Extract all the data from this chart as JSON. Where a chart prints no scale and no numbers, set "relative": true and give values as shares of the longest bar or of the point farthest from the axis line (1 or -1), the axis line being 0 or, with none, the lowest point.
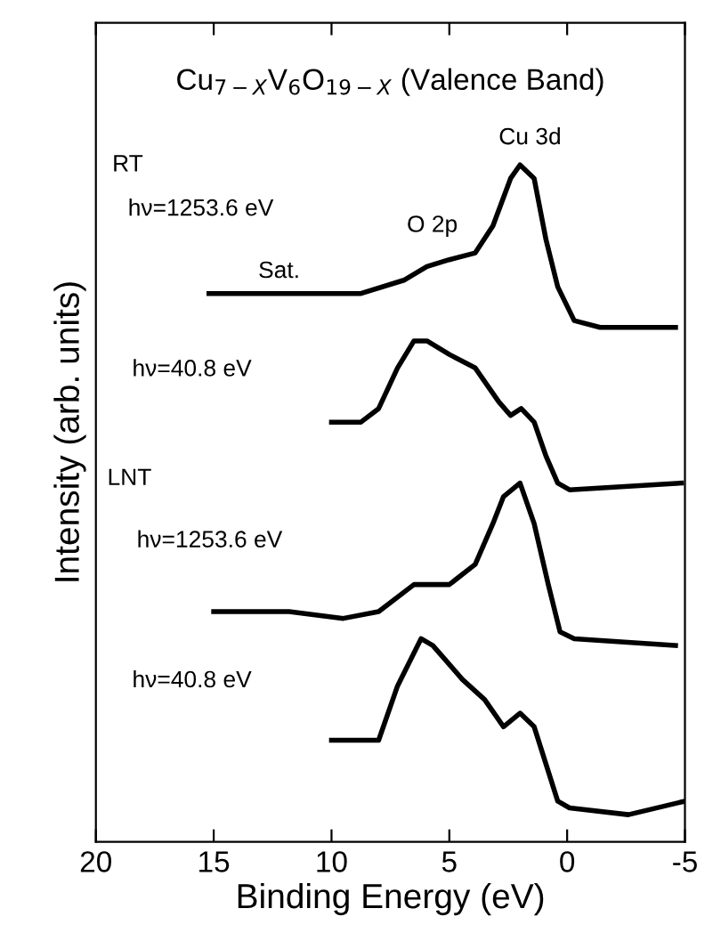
{
  "chart_data": {
    "type": "line",
    "relative": true,
    "title": "Cu$_{7−X}$V$_{6}$O$_{19−X}$ (Valence Band)",
    "xlabel": "Binding Energy (eV)",
    "ylabel": "Intensity (arb. units)",
    "xlim": [
      20,
      -5
    ],
    "xticks": [
      20,
      15,
      10,
      5,
      0,
      {
        "value": -5,
        "label": "-5"
      }
    ],
    "series": [
      {
        "color": "#000000",
        "x": [
          15.2,
          12.5,
          8.75,
          6.9,
          5.95,
          5.0,
          3.9,
          3.15,
          2.4,
          2.0,
          1.4,
          0.9,
          0.4,
          -0.3,
          -1.4,
          -4.6
        ],
        "values": [
          0.81,
          0.81,
          0.81,
          0.83,
          0.85,
          0.86,
          0.87,
          0.91,
          0.98,
          1.0,
          0.98,
          0.89,
          0.82,
          0.77,
          0.76,
          0.76
        ]
      },
      {
        "color": "#000000",
        "x": [
          10,
          8.75,
          8.0,
          7.2,
          6.5,
          5.95,
          5.0,
          3.9,
          2.9,
          2.4,
          1.95,
          1.4,
          0.9,
          0.4,
          -0.1,
          -4.85
        ],
        "values": [
          0.62,
          0.62,
          0.64,
          0.7,
          0.74,
          0.74,
          0.72,
          0.7,
          0.65,
          0.63,
          0.64,
          0.62,
          0.57,
          0.53,
          0.52,
          0.53
        ]
      },
      {
        "color": "#000000",
        "x": [
          15,
          11.8,
          9.5,
          8.0,
          6.5,
          5.0,
          3.9,
          3.15,
          2.7,
          2.0,
          1.4,
          0.8,
          0.3,
          -0.3,
          -4.6
        ],
        "values": [
          0.34,
          0.34,
          0.33,
          0.34,
          0.38,
          0.38,
          0.41,
          0.47,
          0.51,
          0.53,
          0.47,
          0.38,
          0.31,
          0.3,
          0.29
        ]
      },
      {
        "color": "#000000",
        "x": [
          10,
          8.0,
          7.2,
          6.2,
          5.7,
          4.45,
          3.5,
          2.7,
          2.0,
          1.4,
          0.4,
          -0.1,
          -2.6,
          -5.0
        ],
        "values": [
          0.15,
          0.15,
          0.23,
          0.3,
          0.29,
          0.24,
          0.21,
          0.17,
          0.19,
          0.17,
          0.06,
          0.05,
          0.04,
          0.06
        ]
      }
    ],
    "annotations": [
      "Cu 3d",
      "O 2p",
      "Sat.",
      "RT",
      "hν=1253.6 eV",
      "hν=40.8 eV",
      "LNT",
      "hν=1253.6 eV",
      "hν=40.8 eV"
    ]
  }
}
